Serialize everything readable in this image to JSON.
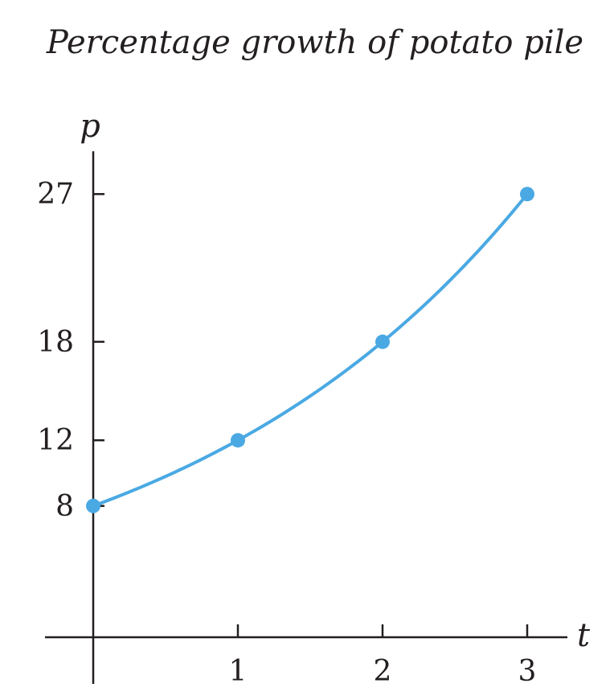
{
  "chart_data": {
    "type": "line",
    "title": "Percentage growth of potato pile",
    "xlabel": "t",
    "ylabel": "p",
    "x_ticks": [
      1,
      2,
      3
    ],
    "y_ticks": [
      8,
      12,
      18,
      27
    ],
    "xlim": [
      0,
      3
    ],
    "ylim": [
      0,
      27
    ],
    "series": [
      {
        "x": [
          0,
          1,
          2,
          3
        ],
        "y": [
          8,
          12,
          18,
          27
        ]
      }
    ],
    "curve": "exponential",
    "grid": false,
    "color": "#4aa9e3"
  }
}
